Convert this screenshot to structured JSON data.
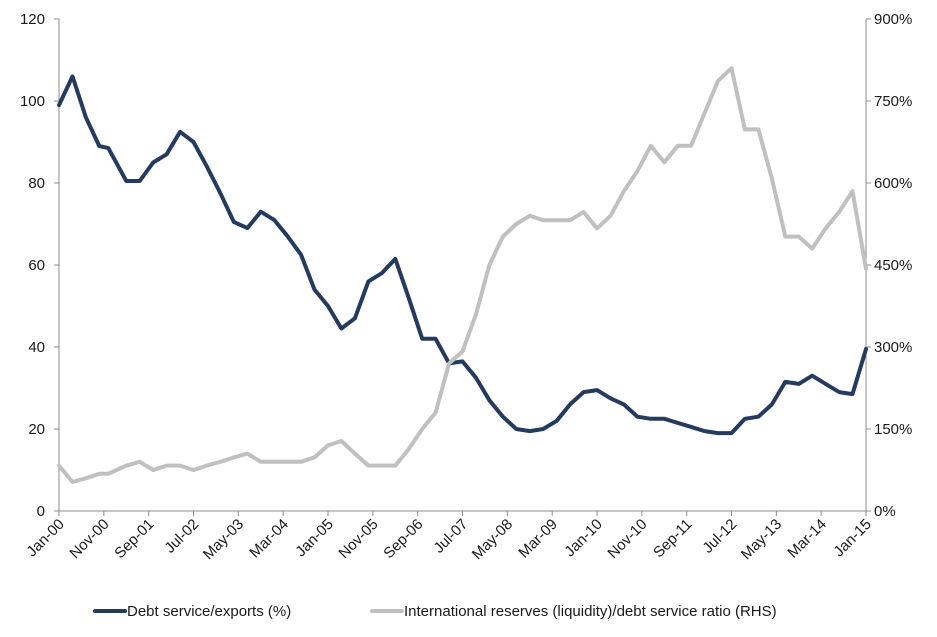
{
  "chart_data": {
    "type": "line",
    "title": "",
    "xlabel": "",
    "ylabel": "",
    "grid": false,
    "legend_position": "bottom",
    "y_left": {
      "range": [
        0,
        120
      ],
      "ticks": [
        "0",
        "20",
        "40",
        "60",
        "80",
        "100",
        "120"
      ]
    },
    "y_right": {
      "range": [
        0,
        900
      ],
      "ticks": [
        "0%",
        "150%",
        "300%",
        "450%",
        "600%",
        "750%",
        "900%"
      ]
    },
    "x_tick_labels": [
      "Jan-00",
      "Nov-00",
      "Sep-01",
      "Jul-02",
      "May-03",
      "Mar-04",
      "Jan-05",
      "Nov-05",
      "Sep-06",
      "Jul-07",
      "May-08",
      "Mar-09",
      "Jan-10",
      "Nov-10",
      "Sep-11",
      "Jul-12",
      "May-13",
      "Mar-14",
      "Jan-15"
    ],
    "series": [
      {
        "name": "Debt service/exports (%)",
        "axis": "left",
        "color": "#243a5e",
        "points": [
          [
            "2000-01",
            99
          ],
          [
            "2000-04",
            106
          ],
          [
            "2000-07",
            96
          ],
          [
            "2000-10",
            89
          ],
          [
            "2000-12",
            88.5
          ],
          [
            "2001-04",
            80.5
          ],
          [
            "2001-07",
            80.5
          ],
          [
            "2001-10",
            85
          ],
          [
            "2002-01",
            87
          ],
          [
            "2002-04",
            92.5
          ],
          [
            "2002-07",
            90
          ],
          [
            "2002-10",
            84
          ],
          [
            "2003-01",
            77.5
          ],
          [
            "2003-04",
            70.5
          ],
          [
            "2003-07",
            69
          ],
          [
            "2003-10",
            73
          ],
          [
            "2004-01",
            71
          ],
          [
            "2004-04",
            67
          ],
          [
            "2004-07",
            62.5
          ],
          [
            "2004-10",
            54
          ],
          [
            "2005-01",
            50
          ],
          [
            "2005-04",
            44.5
          ],
          [
            "2005-07",
            47
          ],
          [
            "2005-10",
            56
          ],
          [
            "2006-01",
            58
          ],
          [
            "2006-04",
            61.5
          ],
          [
            "2006-07",
            52
          ],
          [
            "2006-10",
            42
          ],
          [
            "2007-01",
            42
          ],
          [
            "2007-04",
            36
          ],
          [
            "2007-07",
            36.5
          ],
          [
            "2007-10",
            32.5
          ],
          [
            "2008-01",
            27
          ],
          [
            "2008-04",
            23
          ],
          [
            "2008-07",
            20
          ],
          [
            "2008-10",
            19.5
          ],
          [
            "2009-01",
            20
          ],
          [
            "2009-04",
            22
          ],
          [
            "2009-07",
            26
          ],
          [
            "2009-10",
            29
          ],
          [
            "2010-01",
            29.5
          ],
          [
            "2010-04",
            27.5
          ],
          [
            "2010-07",
            26
          ],
          [
            "2010-10",
            23
          ],
          [
            "2011-01",
            22.5
          ],
          [
            "2011-04",
            22.5
          ],
          [
            "2011-07",
            21.5
          ],
          [
            "2011-10",
            20.5
          ],
          [
            "2012-01",
            19.5
          ],
          [
            "2012-04",
            19
          ],
          [
            "2012-07",
            19
          ],
          [
            "2012-10",
            22.5
          ],
          [
            "2013-01",
            23
          ],
          [
            "2013-04",
            26
          ],
          [
            "2013-07",
            31.5
          ],
          [
            "2013-10",
            31
          ],
          [
            "2014-01",
            33
          ],
          [
            "2014-04",
            31
          ],
          [
            "2014-07",
            29
          ],
          [
            "2014-10",
            28.5
          ],
          [
            "2015-01",
            39.5
          ]
        ]
      },
      {
        "name": "International reserves (liquidity)/debt service ratio (RHS)",
        "axis": "right",
        "color": "#c0c0c0",
        "points": [
          [
            "2000-01",
            83
          ],
          [
            "2000-04",
            53
          ],
          [
            "2000-07",
            60
          ],
          [
            "2000-10",
            68
          ],
          [
            "2000-12",
            68
          ],
          [
            "2001-04",
            83
          ],
          [
            "2001-07",
            90
          ],
          [
            "2001-10",
            75
          ],
          [
            "2002-01",
            83
          ],
          [
            "2002-04",
            83
          ],
          [
            "2002-07",
            75
          ],
          [
            "2002-10",
            83
          ],
          [
            "2003-01",
            90
          ],
          [
            "2003-04",
            98
          ],
          [
            "2003-07",
            105
          ],
          [
            "2003-10",
            90
          ],
          [
            "2004-01",
            90
          ],
          [
            "2004-04",
            90
          ],
          [
            "2004-07",
            90
          ],
          [
            "2004-10",
            98
          ],
          [
            "2005-01",
            120
          ],
          [
            "2005-04",
            128
          ],
          [
            "2005-07",
            105
          ],
          [
            "2005-10",
            83
          ],
          [
            "2006-01",
            83
          ],
          [
            "2006-04",
            83
          ],
          [
            "2006-07",
            113
          ],
          [
            "2006-10",
            150
          ],
          [
            "2007-01",
            180
          ],
          [
            "2007-04",
            270
          ],
          [
            "2007-07",
            292
          ],
          [
            "2007-10",
            360
          ],
          [
            "2008-01",
            450
          ],
          [
            "2008-04",
            502
          ],
          [
            "2008-07",
            525
          ],
          [
            "2008-10",
            540
          ],
          [
            "2009-01",
            532
          ],
          [
            "2009-04",
            532
          ],
          [
            "2009-07",
            532
          ],
          [
            "2009-10",
            547
          ],
          [
            "2010-01",
            517
          ],
          [
            "2010-04",
            540
          ],
          [
            "2010-07",
            585
          ],
          [
            "2010-10",
            622
          ],
          [
            "2011-01",
            668
          ],
          [
            "2011-04",
            638
          ],
          [
            "2011-07",
            668
          ],
          [
            "2011-10",
            668
          ],
          [
            "2012-01",
            728
          ],
          [
            "2012-04",
            787
          ],
          [
            "2012-07",
            810
          ],
          [
            "2012-10",
            698
          ],
          [
            "2013-01",
            698
          ],
          [
            "2013-04",
            608
          ],
          [
            "2013-07",
            502
          ],
          [
            "2013-10",
            502
          ],
          [
            "2014-01",
            480
          ],
          [
            "2014-04",
            517
          ],
          [
            "2014-07",
            547
          ],
          [
            "2014-10",
            585
          ],
          [
            "2015-01",
            443
          ]
        ]
      }
    ]
  }
}
